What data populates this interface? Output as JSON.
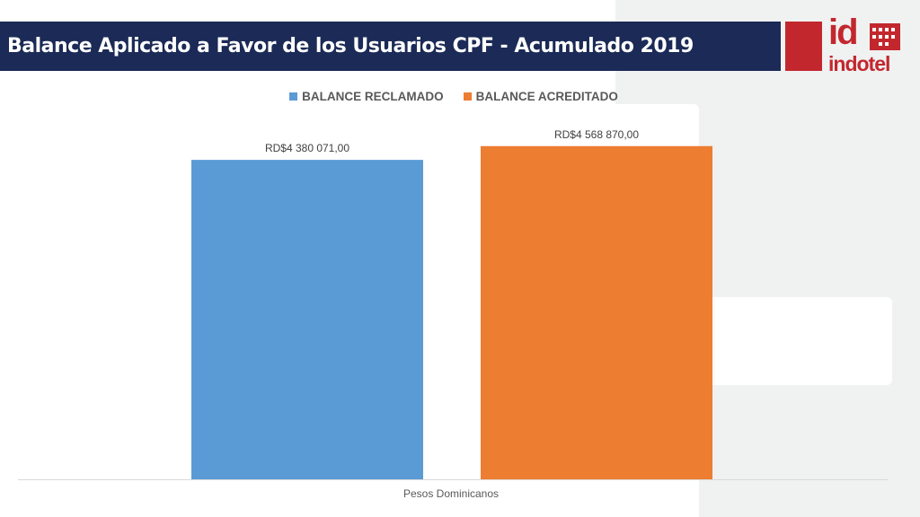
{
  "title": "Balance Aplicado a Favor de los Usuarios CPF - Acumulado 2019",
  "logo": {
    "id_text": "id",
    "brand_text": "indotel"
  },
  "colors": {
    "header": "#1b2a56",
    "brand_red": "#c3272e",
    "series1": "#5b9bd5",
    "series2": "#ed7d31"
  },
  "chart_data": {
    "type": "bar",
    "categories": [
      "Pesos Dominicanos"
    ],
    "series": [
      {
        "name": "BALANCE RECLAMADO",
        "values": [
          4380071
        ],
        "label": "RD$4 380 071,00",
        "color": "#5b9bd5"
      },
      {
        "name": "BALANCE ACREDITADO",
        "values": [
          4568870
        ],
        "label": "RD$4 568 870,00",
        "color": "#ed7d31"
      }
    ],
    "xlabel": "Pesos Dominicanos",
    "ylabel": "",
    "ylim": [
      0,
      4800000
    ],
    "grid": false,
    "legend": "top"
  }
}
